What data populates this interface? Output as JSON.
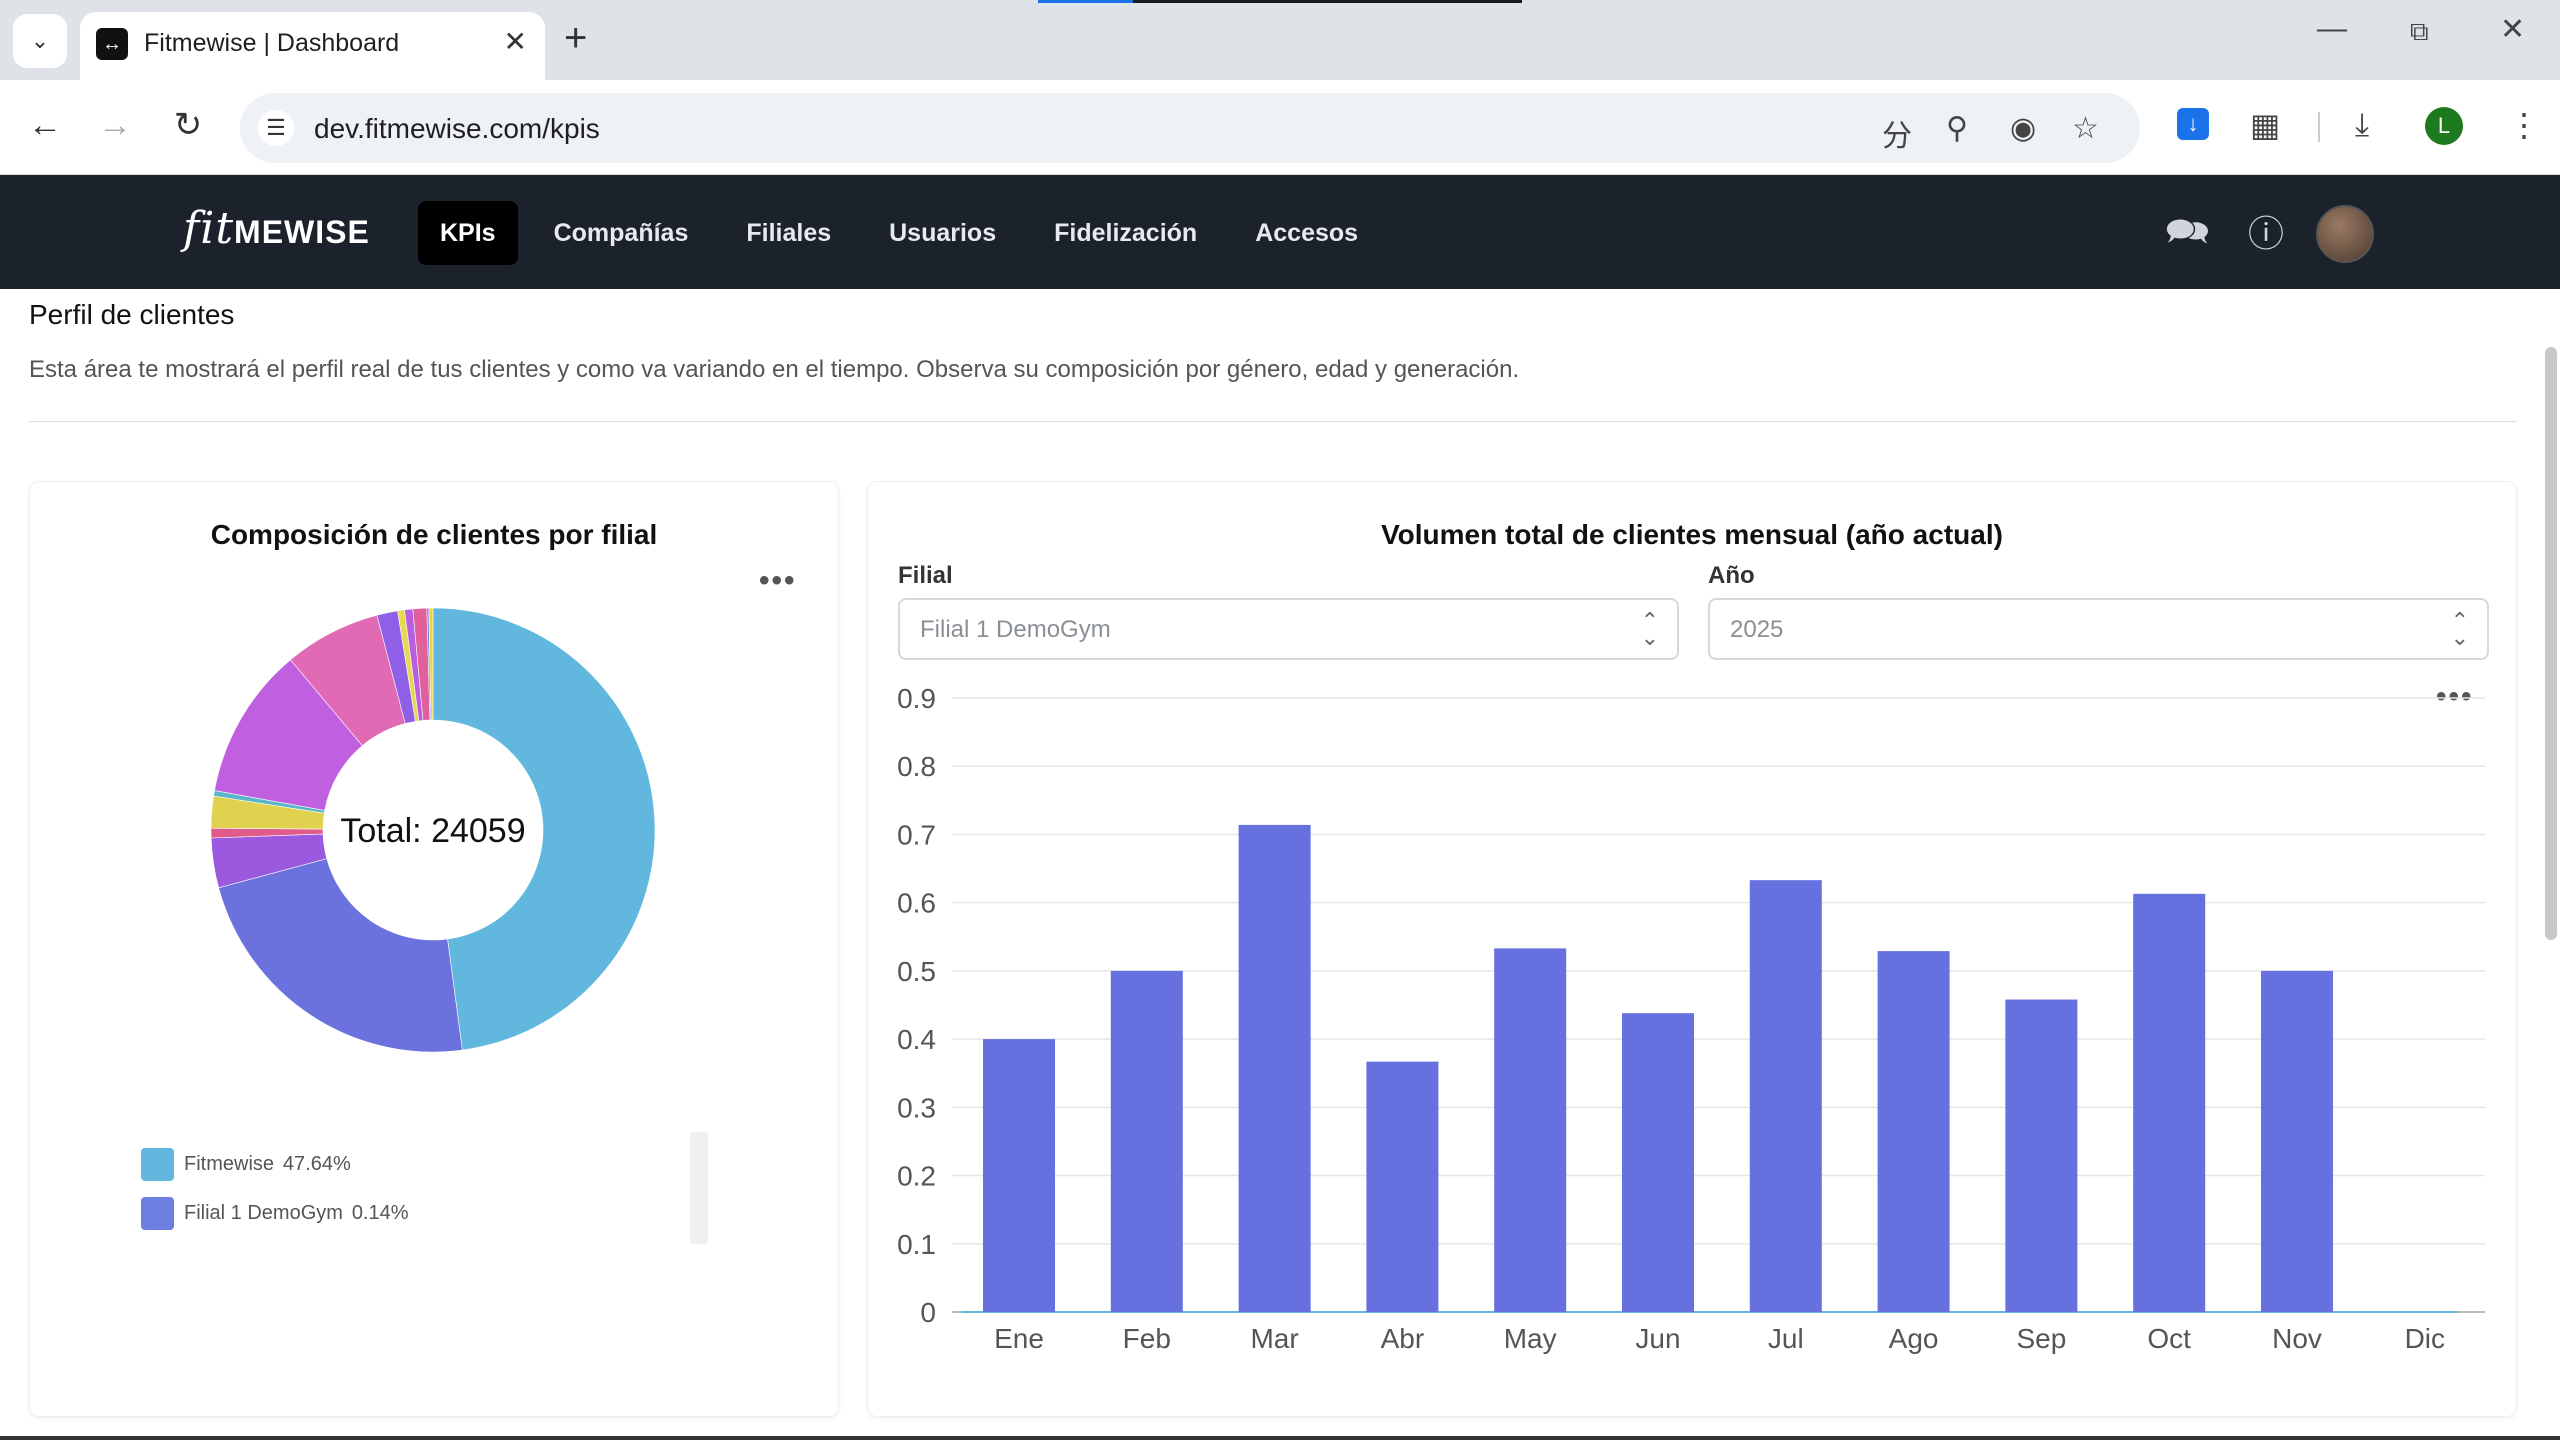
{
  "browser": {
    "tab_title": "Fitmewise | Dashboard",
    "url": "dev.fitmewise.com/kpis",
    "profile_initial": "L"
  },
  "app": {
    "logo_fit": "fit",
    "logo_mewise": "MEWISE",
    "nav": [
      "KPIs",
      "Compañías",
      "Filiales",
      "Usuarios",
      "Fidelización",
      "Accesos"
    ],
    "active_nav": "KPIs"
  },
  "section": {
    "title": "Perfil de clientes",
    "description": "Esta área te mostrará el perfil real de tus clientes y como va variando en el tiempo. Observa su composición por género, edad y generación."
  },
  "donut_card": {
    "title": "Composición de clientes por filial",
    "center_label": "Total: 24059",
    "legend": [
      {
        "label": "Fitmewise",
        "pct": "47.64%",
        "color": "#62b7df"
      },
      {
        "label": "Filial 1 DemoGym",
        "pct": "0.14%",
        "color": "#6c7fe0"
      }
    ]
  },
  "bar_card": {
    "title": "Volumen total de clientes mensual (año actual)",
    "filter_label": "Filial",
    "filter_value": "Filial 1 DemoGym",
    "year_label": "Año",
    "year_value": "2025"
  },
  "chart_data": [
    {
      "type": "pie",
      "title": "Composición de clientes por filial",
      "center_text": "Total: 24059",
      "slices": [
        {
          "label": "Fitmewise",
          "value": 47.64,
          "color": "#62b7df"
        },
        {
          "label": "",
          "value": 22.8,
          "color": "#6b72de"
        },
        {
          "label": "",
          "value": 3.6,
          "color": "#9b59e0"
        },
        {
          "label": "",
          "value": 0.7,
          "color": "#e05a8a"
        },
        {
          "label": "",
          "value": 2.3,
          "color": "#e0d24f"
        },
        {
          "label": "",
          "value": 0.4,
          "color": "#5ab6c8"
        },
        {
          "label": "",
          "value": 11.0,
          "color": "#c060e0"
        },
        {
          "label": "",
          "value": 7.0,
          "color": "#e06ab4"
        },
        {
          "label": "",
          "value": 1.5,
          "color": "#8f5fe8"
        },
        {
          "label": "",
          "value": 0.5,
          "color": "#e6d84f"
        },
        {
          "label": "",
          "value": 0.6,
          "color": "#b85ee0"
        },
        {
          "label": "",
          "value": 1.0,
          "color": "#e0609c"
        },
        {
          "label": "Filial 1 DemoGym",
          "value": 0.14,
          "color": "#6c7fe0"
        },
        {
          "label": "",
          "value": 0.3,
          "color": "#e8d450"
        }
      ]
    },
    {
      "type": "bar",
      "title": "Volumen total de clientes mensual (año actual)",
      "categories": [
        "Ene",
        "Feb",
        "Mar",
        "Abr",
        "May",
        "Jun",
        "Jul",
        "Ago",
        "Sep",
        "Oct",
        "Nov",
        "Dic"
      ],
      "values": [
        0.4,
        0.5,
        0.714,
        0.367,
        0.533,
        0.438,
        0.633,
        0.529,
        0.458,
        0.613,
        0.5,
        0
      ],
      "ylim": [
        0,
        0.9
      ],
      "yticks": [
        "0",
        "0.1",
        "0.2",
        "0.3",
        "0.4",
        "0.5",
        "0.6",
        "0.7",
        "0.8",
        "0.9"
      ],
      "color": "#6670df",
      "grid": true
    }
  ]
}
